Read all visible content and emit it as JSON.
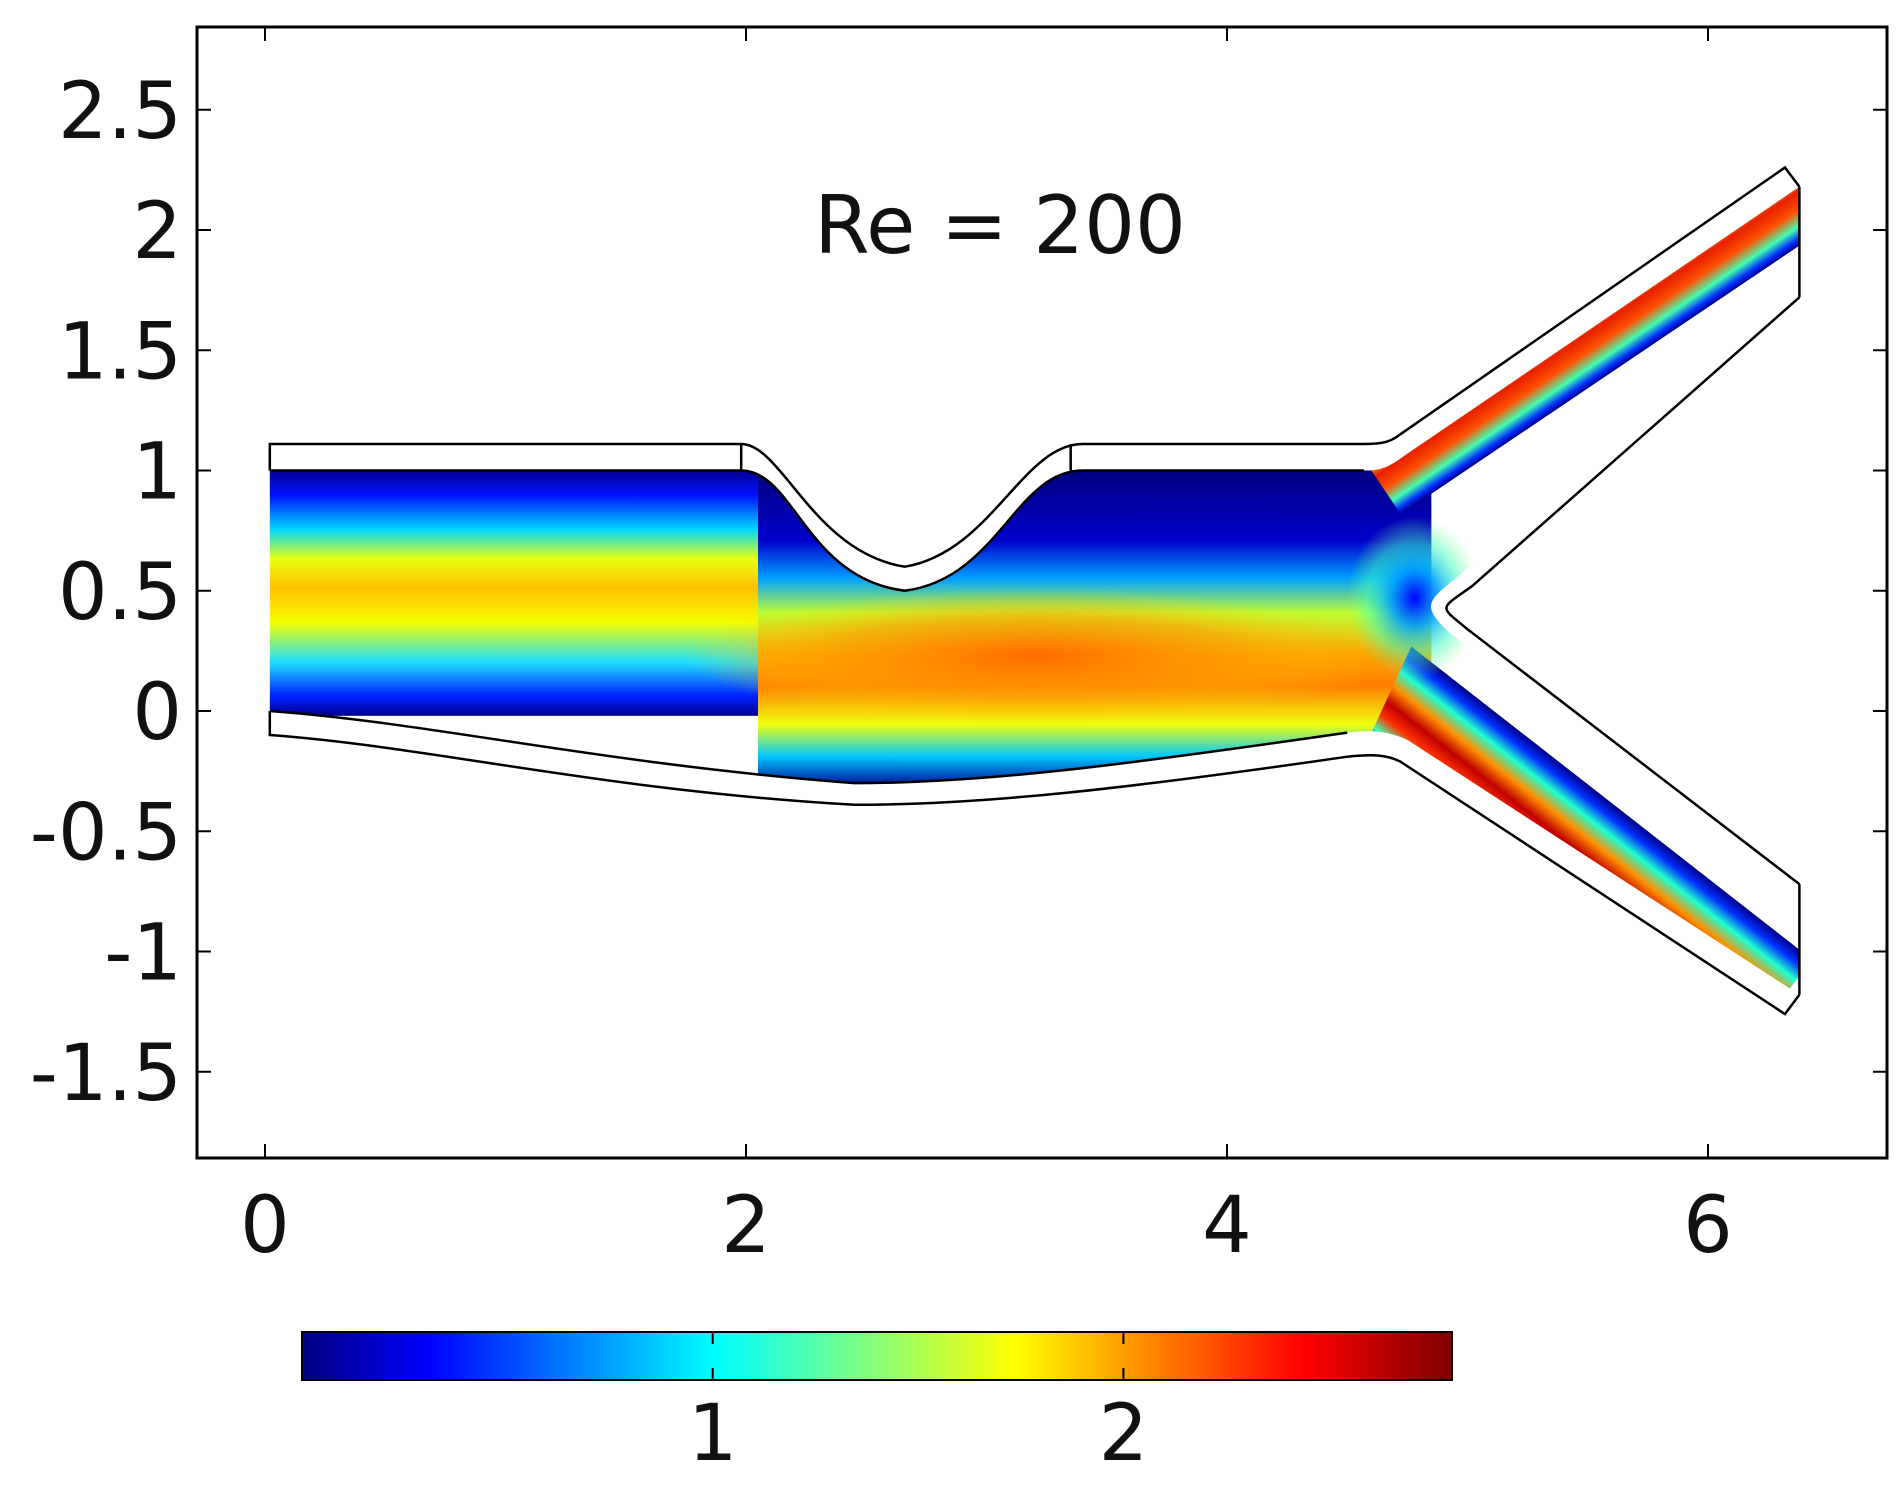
{
  "chart_data": {
    "type": "heatmap",
    "title": "",
    "xlabel": "",
    "ylabel": "",
    "annotation": "Re = 200",
    "xlim": [
      -0.3,
      6.7
    ],
    "ylim": [
      -1.8,
      2.85
    ],
    "xticks": [
      0,
      2,
      4,
      6
    ],
    "yticks": [
      -1.5,
      -1,
      -0.5,
      0,
      0.5,
      1,
      1.5,
      2,
      2.5
    ],
    "xtick_labels": [
      "0",
      "2",
      "4",
      "6"
    ],
    "ytick_labels": [
      "-1.5",
      "-1",
      "-0.5",
      "0",
      "0.5",
      "1",
      "1.5",
      "2",
      "2.5"
    ],
    "grid": false,
    "colorbar": {
      "range": [
        0,
        2.8
      ],
      "ticks": [
        1,
        2
      ],
      "tick_labels": [
        "1",
        "2"
      ],
      "colormap": "jet",
      "position": "bottom"
    },
    "velocity_field": {
      "inlet_peak": 1.9,
      "stenosis_peak": 2.2,
      "upper_branch_peak": 2.5,
      "lower_branch_peak": 2.8
    }
  },
  "colors": {
    "colormap_stops": [
      "#00007f",
      "#0000ff",
      "#00ffff",
      "#ffff00",
      "#ff0000",
      "#7f0000"
    ],
    "wall": "#000000",
    "background": "#ffffff"
  }
}
